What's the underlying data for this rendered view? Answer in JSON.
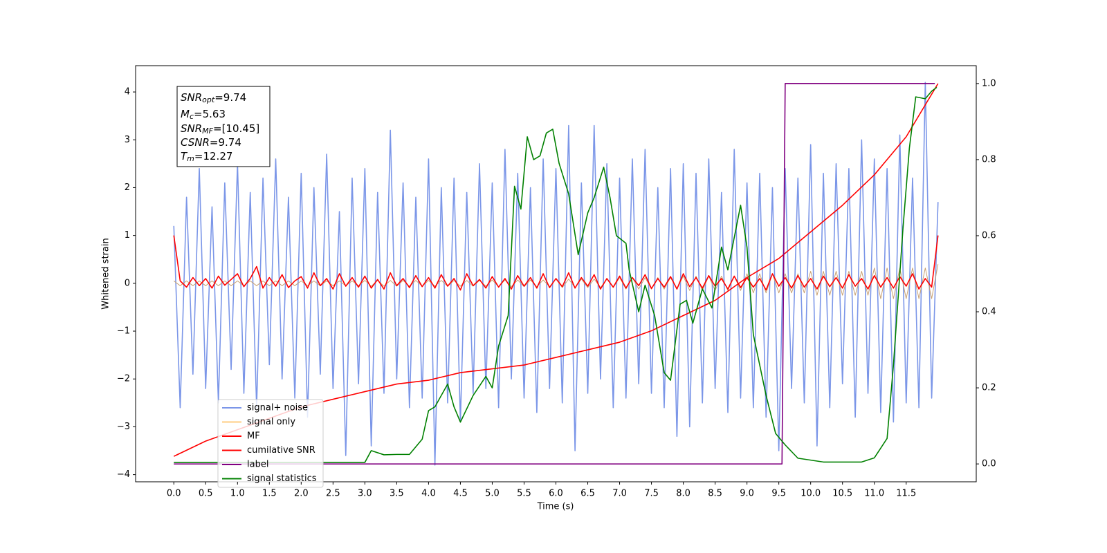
{
  "chart_data": {
    "type": "line",
    "xlabel": "Time (s)",
    "ylabel": "Whitened strain",
    "xlim": [
      -0.6,
      12.6
    ],
    "ylim": [
      -4.15,
      4.55
    ],
    "y2lim": [
      -0.047,
      1.047
    ],
    "xticks": [
      {
        "value": 0,
        "label": "0.0"
      },
      0.5,
      {
        "value": 1,
        "label": "1.0"
      },
      1.5,
      {
        "value": 2,
        "label": "2.0"
      },
      2.5,
      {
        "value": 3,
        "label": "3.0"
      },
      3.5,
      {
        "value": 4,
        "label": "4.0"
      },
      4.5,
      {
        "value": 5,
        "label": "5.0"
      },
      5.5,
      {
        "value": 6,
        "label": "6.0"
      },
      6.5,
      {
        "value": 7,
        "label": "7.0"
      },
      7.5,
      {
        "value": 8,
        "label": "8.0"
      },
      8.5,
      {
        "value": 9,
        "label": "9.0"
      },
      9.5,
      {
        "value": 10,
        "label": "10.0"
      },
      10.5,
      {
        "value": 11,
        "label": "11.0"
      },
      11.5
    ],
    "yticks": [
      {
        "value": -4,
        "label": "−4"
      },
      {
        "value": -3,
        "label": "−3"
      },
      {
        "value": -2,
        "label": "−2"
      },
      {
        "value": -1,
        "label": "−1"
      },
      0,
      1,
      2,
      3,
      4
    ],
    "y2ticks": [
      {
        "value": 0,
        "label": "0.0"
      },
      0.2,
      0.4,
      0.6,
      0.8,
      {
        "value": 1,
        "label": "1.0"
      }
    ],
    "legend_loc": "lower left",
    "annotations": [
      {
        "main": "SNR",
        "sub": "opt",
        "rest": "=9.74"
      },
      {
        "main": "M",
        "sub": "c",
        "rest": "=5.63"
      },
      {
        "main": "SNR",
        "sub": "MF",
        "rest": "=[10.45]"
      },
      {
        "main": "CSNR",
        "rest": "=9.74"
      },
      {
        "main": "T",
        "sub": "m",
        "rest": "=12.27"
      }
    ],
    "x": [
      0,
      0.1,
      0.2,
      0.3,
      0.4,
      0.5,
      0.6,
      0.7,
      0.8,
      0.9,
      1,
      1.1,
      1.2,
      1.3,
      1.4,
      1.5,
      1.6,
      1.7,
      1.8,
      1.9,
      2,
      2.1,
      2.2,
      2.3,
      2.4,
      2.5,
      2.6,
      2.7,
      2.8,
      2.9,
      3,
      3.1,
      3.2,
      3.3,
      3.4,
      3.5,
      3.6,
      3.7,
      3.8,
      3.9,
      4,
      4.1,
      4.2,
      4.3,
      4.4,
      4.5,
      4.6,
      4.7,
      4.8,
      4.9,
      5,
      5.1,
      5.2,
      5.3,
      5.4,
      5.5,
      5.6,
      5.7,
      5.8,
      5.9,
      6,
      6.1,
      6.2,
      6.3,
      6.4,
      6.5,
      6.6,
      6.7,
      6.8,
      6.9,
      7,
      7.1,
      7.2,
      7.3,
      7.4,
      7.5,
      7.6,
      7.7,
      7.8,
      7.9,
      8,
      8.1,
      8.2,
      8.3,
      8.4,
      8.5,
      8.6,
      8.7,
      8.8,
      8.9,
      9,
      9.1,
      9.2,
      9.3,
      9.4,
      9.5,
      9.6,
      9.7,
      9.8,
      9.9,
      10,
      10.1,
      10.2,
      10.3,
      10.4,
      10.5,
      10.6,
      10.7,
      10.8,
      10.9,
      11,
      11.1,
      11.2,
      11.3,
      11.4,
      11.5,
      11.6,
      11.7,
      11.8,
      11.9,
      12
    ],
    "series": [
      {
        "name": "signal+ noise",
        "color": "#7b96e8",
        "axis": "y",
        "values": [
          1.2,
          -2.6,
          1.8,
          -1.9,
          2.4,
          -2.2,
          1.6,
          -2.5,
          2.1,
          -1.8,
          2.5,
          -2.3,
          1.9,
          -2.6,
          2.2,
          -1.7,
          2.6,
          -2.0,
          1.8,
          -2.4,
          2.3,
          -2.8,
          2.0,
          -1.9,
          2.7,
          -2.2,
          1.5,
          -3.6,
          2.2,
          -2.1,
          2.4,
          -3.4,
          1.9,
          -2.3,
          3.2,
          -2.0,
          2.1,
          -2.6,
          1.8,
          -2.4,
          2.6,
          -3.8,
          2.0,
          -2.5,
          2.2,
          -2.9,
          1.9,
          -2.3,
          2.5,
          -2.2,
          2.1,
          -2.6,
          2.8,
          -2.0,
          2.3,
          -2.4,
          2.0,
          -2.7,
          2.6,
          -2.2,
          2.4,
          -2.5,
          3.3,
          -3.5,
          2.1,
          -2.3,
          3.3,
          -2.0,
          2.5,
          -2.6,
          2.2,
          -2.4,
          2.6,
          -2.1,
          2.8,
          -2.3,
          2.0,
          -2.6,
          2.4,
          -3.2,
          2.5,
          -3.0,
          2.3,
          -2.5,
          2.6,
          -2.2,
          1.9,
          -2.7,
          2.8,
          -2.4,
          2.1,
          -2.6,
          2.3,
          -2.8,
          2.0,
          -3.5,
          2.4,
          -2.2,
          2.2,
          -2.5,
          2.9,
          -3.4,
          2.3,
          -2.6,
          2.5,
          -2.1,
          2.4,
          -2.8,
          3.0,
          -2.3,
          2.6,
          -2.7,
          2.4,
          -2.9,
          3.1,
          -2.5,
          2.2,
          -2.6,
          4.2,
          -2.4,
          1.7
        ]
      },
      {
        "name": "signal only",
        "color": "#c8a070",
        "axis": "y",
        "values": [
          0.05,
          -0.05,
          0.05,
          -0.05,
          0.05,
          -0.05,
          0.05,
          -0.05,
          0.05,
          -0.05,
          0.05,
          -0.05,
          0.05,
          -0.05,
          0.05,
          -0.05,
          0.05,
          -0.05,
          0.05,
          -0.05,
          0.05,
          -0.05,
          0.05,
          -0.05,
          0.05,
          -0.05,
          0.05,
          -0.05,
          0.05,
          -0.05,
          0.06,
          -0.06,
          0.06,
          -0.06,
          0.06,
          -0.06,
          0.06,
          -0.06,
          0.06,
          -0.06,
          0.06,
          -0.06,
          0.06,
          -0.06,
          0.06,
          -0.06,
          0.06,
          -0.06,
          0.06,
          -0.06,
          0.07,
          -0.07,
          0.07,
          -0.07,
          0.07,
          -0.07,
          0.07,
          -0.07,
          0.07,
          -0.07,
          0.09,
          -0.09,
          0.09,
          -0.09,
          0.09,
          -0.09,
          0.09,
          -0.09,
          0.09,
          -0.09,
          0.12,
          -0.12,
          0.12,
          -0.12,
          0.12,
          -0.12,
          0.12,
          -0.12,
          0.12,
          -0.12,
          0.15,
          -0.15,
          0.15,
          -0.15,
          0.15,
          -0.15,
          0.15,
          -0.15,
          0.15,
          -0.15,
          0.2,
          -0.2,
          0.2,
          -0.2,
          0.2,
          -0.2,
          0.2,
          -0.2,
          0.2,
          -0.2,
          0.25,
          -0.25,
          0.25,
          -0.25,
          0.25,
          -0.25,
          0.25,
          -0.25,
          0.25,
          -0.25,
          0.32,
          -0.32,
          0.32,
          -0.32,
          0.32,
          -0.32,
          0.32,
          -0.32,
          0.32,
          -0.32,
          0.4
        ]
      },
      {
        "name": "MF",
        "color": "#ff0000",
        "axis": "y",
        "values": [
          1.0,
          0.05,
          -0.08,
          0.12,
          -0.05,
          0.1,
          -0.1,
          0.15,
          -0.04,
          0.08,
          0.2,
          -0.07,
          0.1,
          0.35,
          -0.1,
          0.12,
          -0.06,
          0.18,
          -0.09,
          0.05,
          0.14,
          -0.1,
          0.22,
          -0.05,
          0.1,
          -0.12,
          0.2,
          -0.06,
          0.12,
          -0.08,
          0.15,
          -0.1,
          0.08,
          -0.12,
          0.22,
          -0.05,
          0.1,
          -0.09,
          0.16,
          -0.07,
          0.12,
          -0.1,
          0.18,
          -0.06,
          0.1,
          -0.14,
          0.2,
          -0.05,
          0.08,
          -0.1,
          0.14,
          -0.08,
          0.1,
          -0.12,
          0.16,
          -0.06,
          0.12,
          -0.1,
          0.2,
          -0.09,
          0.1,
          -0.07,
          0.22,
          -0.1,
          0.12,
          -0.06,
          0.18,
          -0.12,
          0.1,
          -0.08,
          0.15,
          -0.1,
          0.12,
          -0.05,
          0.18,
          -0.11,
          0.1,
          -0.08,
          0.14,
          -0.12,
          0.2,
          -0.07,
          0.12,
          -0.1,
          0.16,
          -0.06,
          0.1,
          -0.12,
          0.15,
          -0.09,
          0.12,
          -0.08,
          0.1,
          -0.14,
          0.2,
          -0.06,
          0.12,
          -0.1,
          0.16,
          -0.08,
          0.1,
          -0.12,
          0.15,
          -0.07,
          0.12,
          -0.1,
          0.18,
          -0.06,
          0.1,
          -0.12,
          0.16,
          -0.08,
          0.12,
          -0.1,
          0.14,
          -0.06,
          0.2,
          -0.12,
          0.1,
          -0.08,
          1.0
        ]
      },
      {
        "name": "cumilative SNR",
        "color": "#ff0000",
        "axis": "y2",
        "x": [
          0,
          0.5,
          1,
          1.5,
          2,
          2.5,
          3,
          3.5,
          4,
          4.5,
          5,
          5.5,
          6,
          6.5,
          7,
          7.5,
          8,
          8.5,
          9,
          9.5,
          10,
          10.5,
          11,
          11.5,
          12
        ],
        "values": [
          0.02,
          0.06,
          0.09,
          0.12,
          0.15,
          0.17,
          0.19,
          0.21,
          0.22,
          0.24,
          0.25,
          0.26,
          0.28,
          0.3,
          0.32,
          0.35,
          0.39,
          0.43,
          0.49,
          0.54,
          0.61,
          0.68,
          0.76,
          0.86,
          1.0
        ]
      },
      {
        "name": "label",
        "color": "#800080",
        "axis": "y2",
        "x": [
          0,
          9.55,
          9.6,
          11.95
        ],
        "values": [
          0,
          0,
          1,
          1
        ]
      },
      {
        "name": "signal statistics",
        "color": "#008000",
        "axis": "y2",
        "x": [
          0,
          1,
          2,
          3,
          3.1,
          3.3,
          3.5,
          3.7,
          3.9,
          4.0,
          4.1,
          4.3,
          4.4,
          4.5,
          4.7,
          4.9,
          5.0,
          5.1,
          5.25,
          5.35,
          5.45,
          5.55,
          5.65,
          5.75,
          5.85,
          5.95,
          6.05,
          6.2,
          6.35,
          6.5,
          6.6,
          6.75,
          6.85,
          6.95,
          7.1,
          7.15,
          7.3,
          7.4,
          7.55,
          7.7,
          7.8,
          7.95,
          8.05,
          8.15,
          8.3,
          8.45,
          8.6,
          8.7,
          8.9,
          9.0,
          9.1,
          9.3,
          9.45,
          9.6,
          9.8,
          10.2,
          10.5,
          10.8,
          11.0,
          11.2,
          11.3,
          11.45,
          11.55,
          11.65,
          11.8,
          11.9,
          11.98
        ],
        "values": [
          0.004,
          0.004,
          0.004,
          0.004,
          0.035,
          0.024,
          0.025,
          0.025,
          0.065,
          0.14,
          0.15,
          0.21,
          0.15,
          0.11,
          0.18,
          0.23,
          0.2,
          0.31,
          0.39,
          0.73,
          0.67,
          0.86,
          0.8,
          0.81,
          0.87,
          0.88,
          0.79,
          0.71,
          0.55,
          0.66,
          0.7,
          0.78,
          0.7,
          0.6,
          0.58,
          0.51,
          0.4,
          0.47,
          0.39,
          0.24,
          0.22,
          0.42,
          0.43,
          0.37,
          0.46,
          0.41,
          0.57,
          0.51,
          0.68,
          0.57,
          0.34,
          0.18,
          0.08,
          0.05,
          0.015,
          0.005,
          0.005,
          0.005,
          0.016,
          0.067,
          0.26,
          0.62,
          0.83,
          0.965,
          0.96,
          0.98,
          0.99
        ]
      }
    ]
  }
}
